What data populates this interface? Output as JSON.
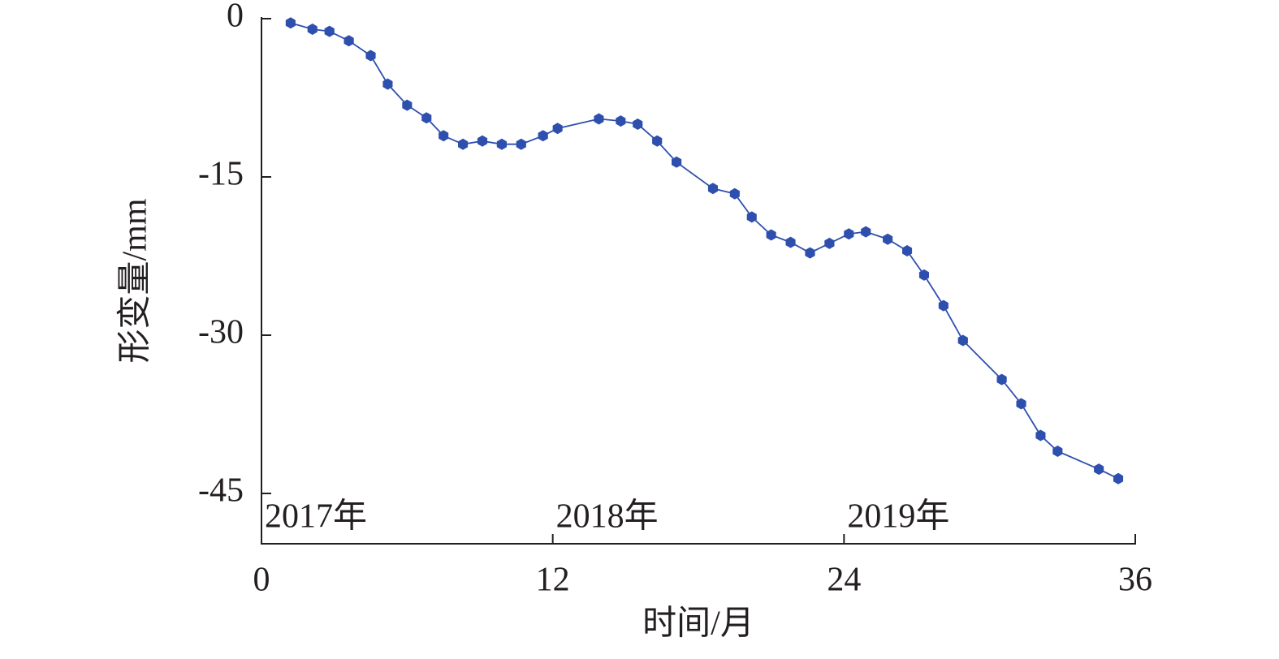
{
  "chart_data": {
    "type": "line",
    "xlabel": "时间/月",
    "ylabel": "形变量/mm",
    "xlim": [
      0,
      36
    ],
    "ylim": [
      -50,
      0
    ],
    "xticks": [
      0,
      12,
      24,
      36
    ],
    "yticks": [
      0,
      -15,
      -30,
      -45
    ],
    "annotations": [
      {
        "text": "2017年",
        "x": 0
      },
      {
        "text": "2018年",
        "x": 12
      },
      {
        "text": "2019年",
        "x": 24
      }
    ],
    "series": [
      {
        "color": "#2e4fae",
        "x": [
          1.2,
          2.1,
          2.8,
          3.6,
          4.5,
          5.2,
          6.0,
          6.8,
          7.5,
          8.3,
          9.1,
          9.9,
          10.7,
          11.6,
          12.2,
          13.9,
          14.8,
          15.5,
          16.3,
          17.1,
          18.6,
          19.5,
          20.2,
          21.0,
          21.8,
          22.6,
          23.4,
          24.2,
          24.9,
          25.8,
          26.6,
          27.3,
          28.1,
          28.9,
          30.5,
          31.3,
          32.1,
          32.8,
          34.5,
          35.3
        ],
        "values": [
          -0.4,
          -1.0,
          -1.2,
          -2.1,
          -3.5,
          -6.2,
          -8.2,
          -9.4,
          -11.1,
          -11.9,
          -11.6,
          -11.9,
          -11.9,
          -11.1,
          -10.4,
          -9.5,
          -9.7,
          -10.0,
          -11.6,
          -13.6,
          -16.1,
          -16.6,
          -18.8,
          -20.5,
          -21.2,
          -22.2,
          -21.3,
          -20.4,
          -20.2,
          -20.9,
          -22.0,
          -24.3,
          -27.2,
          -30.5,
          -34.2,
          -36.5,
          -39.5,
          -41.0,
          -42.7,
          -43.6
        ]
      }
    ]
  }
}
